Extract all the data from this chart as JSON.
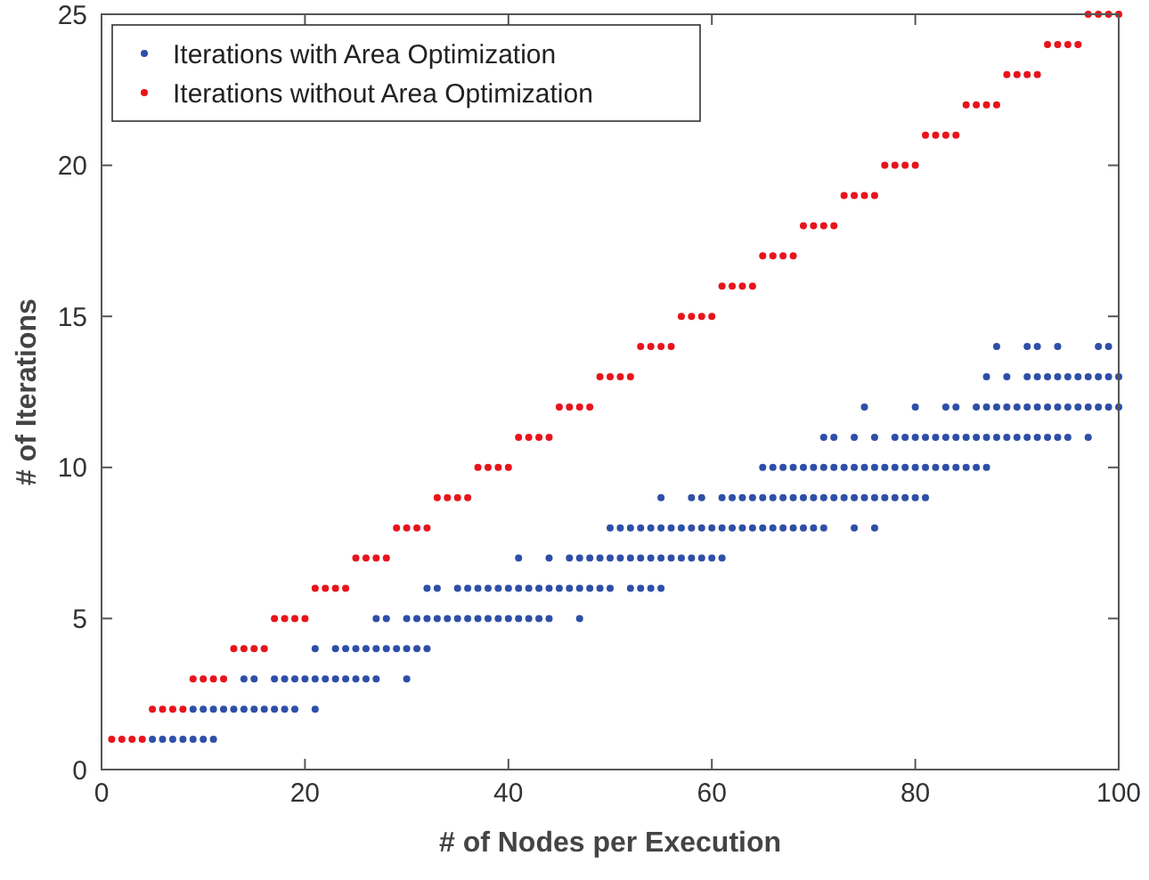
{
  "chart_data": {
    "type": "scatter",
    "xlabel": "# of Nodes per Execution",
    "ylabel": "# of Iterations",
    "xlim": [
      0,
      100
    ],
    "ylim": [
      0,
      25
    ],
    "xticks": [
      0,
      20,
      40,
      60,
      80,
      100
    ],
    "yticks": [
      0,
      5,
      10,
      15,
      20,
      25
    ],
    "grid": false,
    "legend": "top left",
    "marker": "circle",
    "series": [
      {
        "name": "Iterations with Area Optimization",
        "color": "#2e4fa8",
        "x": [
          5,
          6,
          7,
          8,
          9,
          10,
          11,
          9,
          10,
          11,
          12,
          13,
          14,
          15,
          16,
          17,
          18,
          19,
          21,
          14,
          15,
          17,
          18,
          19,
          20,
          21,
          22,
          23,
          24,
          25,
          26,
          27,
          30,
          21,
          23,
          24,
          25,
          26,
          27,
          28,
          29,
          30,
          31,
          32,
          27,
          28,
          30,
          31,
          32,
          33,
          34,
          35,
          36,
          37,
          38,
          39,
          40,
          41,
          42,
          43,
          44,
          47,
          32,
          33,
          35,
          36,
          37,
          38,
          39,
          40,
          41,
          42,
          43,
          44,
          45,
          46,
          47,
          48,
          49,
          50,
          52,
          53,
          54,
          55,
          41,
          44,
          46,
          47,
          48,
          49,
          50,
          51,
          52,
          53,
          54,
          55,
          56,
          57,
          58,
          59,
          60,
          61,
          50,
          51,
          52,
          53,
          54,
          55,
          56,
          57,
          58,
          59,
          60,
          61,
          62,
          63,
          64,
          65,
          66,
          67,
          68,
          69,
          70,
          71,
          74,
          76,
          55,
          58,
          59,
          61,
          62,
          63,
          64,
          65,
          66,
          67,
          68,
          69,
          70,
          71,
          72,
          73,
          74,
          75,
          76,
          77,
          78,
          79,
          80,
          81,
          65,
          66,
          67,
          68,
          69,
          70,
          71,
          72,
          73,
          74,
          75,
          76,
          77,
          78,
          79,
          80,
          81,
          82,
          83,
          84,
          85,
          86,
          87,
          71,
          72,
          74,
          76,
          78,
          79,
          80,
          81,
          82,
          83,
          84,
          85,
          86,
          87,
          88,
          89,
          90,
          91,
          92,
          93,
          94,
          95,
          97,
          75,
          80,
          83,
          84,
          86,
          87,
          88,
          89,
          90,
          91,
          92,
          93,
          94,
          95,
          96,
          97,
          98,
          99,
          100,
          87,
          89,
          91,
          92,
          93,
          94,
          95,
          96,
          97,
          98,
          99,
          100,
          88,
          91,
          92,
          94,
          98,
          99
        ],
        "values": [
          1,
          1,
          1,
          1,
          1,
          1,
          1,
          2,
          2,
          2,
          2,
          2,
          2,
          2,
          2,
          2,
          2,
          2,
          2,
          3,
          3,
          3,
          3,
          3,
          3,
          3,
          3,
          3,
          3,
          3,
          3,
          3,
          3,
          4,
          4,
          4,
          4,
          4,
          4,
          4,
          4,
          4,
          4,
          4,
          5,
          5,
          5,
          5,
          5,
          5,
          5,
          5,
          5,
          5,
          5,
          5,
          5,
          5,
          5,
          5,
          5,
          5,
          6,
          6,
          6,
          6,
          6,
          6,
          6,
          6,
          6,
          6,
          6,
          6,
          6,
          6,
          6,
          6,
          6,
          6,
          6,
          6,
          6,
          6,
          7,
          7,
          7,
          7,
          7,
          7,
          7,
          7,
          7,
          7,
          7,
          7,
          7,
          7,
          7,
          7,
          7,
          7,
          8,
          8,
          8,
          8,
          8,
          8,
          8,
          8,
          8,
          8,
          8,
          8,
          8,
          8,
          8,
          8,
          8,
          8,
          8,
          8,
          8,
          8,
          8,
          8,
          9,
          9,
          9,
          9,
          9,
          9,
          9,
          9,
          9,
          9,
          9,
          9,
          9,
          9,
          9,
          9,
          9,
          9,
          9,
          9,
          9,
          9,
          9,
          9,
          10,
          10,
          10,
          10,
          10,
          10,
          10,
          10,
          10,
          10,
          10,
          10,
          10,
          10,
          10,
          10,
          10,
          10,
          10,
          10,
          10,
          10,
          10,
          11,
          11,
          11,
          11,
          11,
          11,
          11,
          11,
          11,
          11,
          11,
          11,
          11,
          11,
          11,
          11,
          11,
          11,
          11,
          11,
          11,
          11,
          11,
          12,
          12,
          12,
          12,
          12,
          12,
          12,
          12,
          12,
          12,
          12,
          12,
          12,
          12,
          12,
          12,
          12,
          12,
          12,
          13,
          13,
          13,
          13,
          13,
          13,
          13,
          13,
          13,
          13,
          13,
          13,
          14,
          14,
          14,
          14,
          14,
          14
        ]
      },
      {
        "name": "Iterations without Area Optimization",
        "color": "#e8141c",
        "x": [
          1,
          2,
          3,
          4,
          5,
          6,
          7,
          8,
          9,
          10,
          11,
          12,
          13,
          14,
          15,
          16,
          17,
          18,
          19,
          20,
          21,
          22,
          23,
          24,
          25,
          26,
          27,
          28,
          29,
          30,
          31,
          32,
          33,
          34,
          35,
          36,
          37,
          38,
          39,
          40,
          41,
          42,
          43,
          44,
          45,
          46,
          47,
          48,
          49,
          50,
          51,
          52,
          53,
          54,
          55,
          56,
          57,
          58,
          59,
          60,
          61,
          62,
          63,
          64,
          65,
          66,
          67,
          68,
          69,
          70,
          71,
          72,
          73,
          74,
          75,
          76,
          77,
          78,
          79,
          80,
          81,
          82,
          83,
          84,
          85,
          86,
          87,
          88,
          89,
          90,
          91,
          92,
          93,
          94,
          95,
          96,
          97,
          98,
          99,
          100
        ],
        "values": [
          1,
          1,
          1,
          1,
          2,
          2,
          2,
          2,
          3,
          3,
          3,
          3,
          4,
          4,
          4,
          4,
          5,
          5,
          5,
          5,
          6,
          6,
          6,
          6,
          7,
          7,
          7,
          7,
          8,
          8,
          8,
          8,
          9,
          9,
          9,
          9,
          10,
          10,
          10,
          10,
          11,
          11,
          11,
          11,
          12,
          12,
          12,
          12,
          13,
          13,
          13,
          13,
          14,
          14,
          14,
          14,
          15,
          15,
          15,
          15,
          16,
          16,
          16,
          16,
          17,
          17,
          17,
          17,
          18,
          18,
          18,
          18,
          19,
          19,
          19,
          19,
          20,
          20,
          20,
          20,
          21,
          21,
          21,
          21,
          22,
          22,
          22,
          22,
          23,
          23,
          23,
          23,
          24,
          24,
          24,
          24,
          25,
          25,
          25,
          25
        ]
      }
    ]
  }
}
